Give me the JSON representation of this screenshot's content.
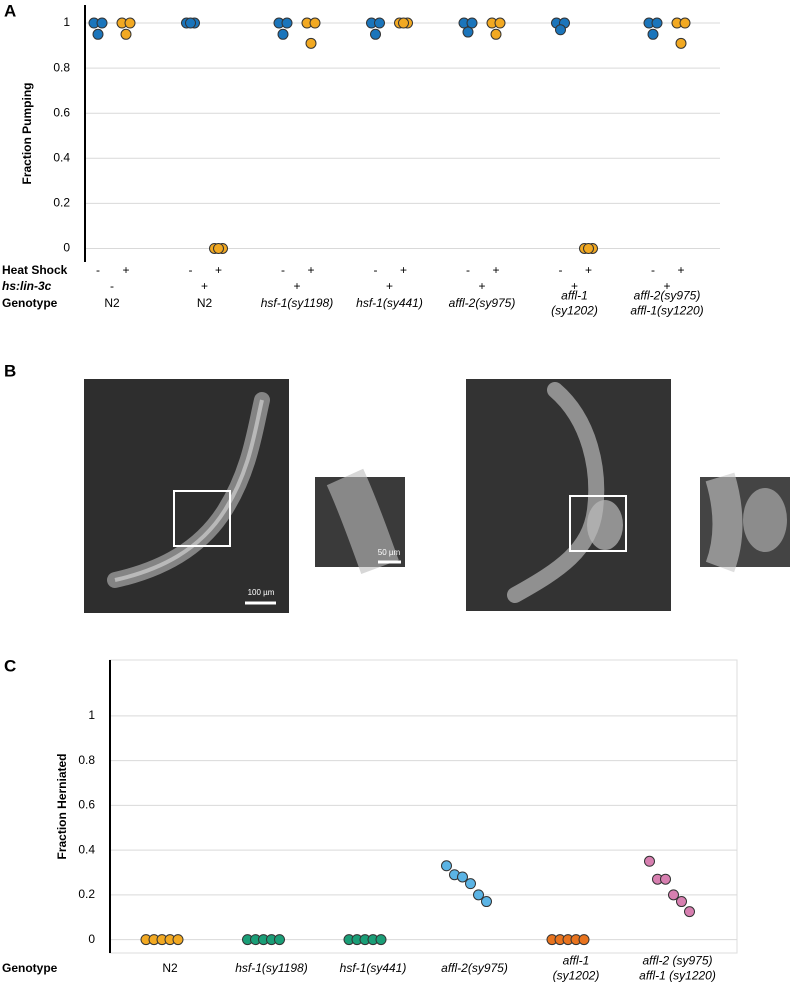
{
  "chart_data": [
    {
      "type": "strip",
      "panel": "A",
      "y_label": "Fraction Pumping",
      "ylim": [
        -0.06,
        1.08
      ],
      "yticks": [
        0,
        0.2,
        0.4,
        0.6,
        0.8,
        1
      ],
      "grid": true,
      "row_labels": [
        "Heat Shock",
        "hs:lin-3c",
        "Genotype"
      ],
      "condition_colors": [
        "#1b75bb",
        "#f2a922"
      ],
      "groups": [
        {
          "genotype": [
            "N2"
          ],
          "italic": false,
          "lin3c": "-",
          "conditions": [
            {
              "heat_shock": "-",
              "values": [
                1,
                1,
                0.95
              ]
            },
            {
              "heat_shock": "+",
              "values": [
                1,
                1,
                0.95
              ]
            }
          ]
        },
        {
          "genotype": [
            "N2"
          ],
          "italic": false,
          "lin3c": "+",
          "conditions": [
            {
              "heat_shock": "-",
              "values": [
                1,
                1,
                1
              ]
            },
            {
              "heat_shock": "+",
              "values": [
                0,
                0,
                0
              ]
            }
          ]
        },
        {
          "genotype": [
            "hsf-1(sy1198)"
          ],
          "italic": true,
          "lin3c": "+",
          "conditions": [
            {
              "heat_shock": "-",
              "values": [
                1,
                1,
                0.95
              ]
            },
            {
              "heat_shock": "+",
              "values": [
                1,
                1,
                0.91
              ]
            }
          ]
        },
        {
          "genotype": [
            "hsf-1(sy441)"
          ],
          "italic": true,
          "lin3c": "+",
          "conditions": [
            {
              "heat_shock": "-",
              "values": [
                1,
                1,
                0.95
              ]
            },
            {
              "heat_shock": "+",
              "values": [
                1,
                1,
                1
              ]
            }
          ]
        },
        {
          "genotype": [
            "affl-2(sy975)"
          ],
          "italic": true,
          "lin3c": "+",
          "conditions": [
            {
              "heat_shock": "-",
              "values": [
                1,
                1,
                0.96
              ]
            },
            {
              "heat_shock": "+",
              "values": [
                1,
                1,
                0.95
              ]
            }
          ]
        },
        {
          "genotype": [
            "affl-1",
            "(sy1202)"
          ],
          "italic": true,
          "lin3c": "+",
          "conditions": [
            {
              "heat_shock": "-",
              "values": [
                1,
                1,
                0.97
              ]
            },
            {
              "heat_shock": "+",
              "values": [
                0,
                0,
                0
              ]
            }
          ]
        },
        {
          "genotype": [
            "affl-2(sy975)",
            "affl-1(sy1220)"
          ],
          "italic": true,
          "lin3c": "+",
          "conditions": [
            {
              "heat_shock": "-",
              "values": [
                1,
                1,
                0.95
              ]
            },
            {
              "heat_shock": "+",
              "values": [
                1,
                1,
                0.91
              ]
            }
          ]
        }
      ]
    },
    {
      "type": "strip",
      "panel": "C",
      "y_label": "Fraction Herniated",
      "ylim": [
        -0.06,
        1.25
      ],
      "yticks": [
        0,
        0.2,
        0.4,
        0.6,
        0.8,
        1
      ],
      "grid": true,
      "row_labels": [
        "Genotype"
      ],
      "groups": [
        {
          "genotype": [
            "N2"
          ],
          "italic": false,
          "color": "#f2a922",
          "values": [
            0,
            0,
            0,
            0,
            0
          ]
        },
        {
          "genotype": [
            "hsf-1(sy1198)"
          ],
          "italic": true,
          "color": "#1a9e77",
          "values": [
            0,
            0,
            0,
            0,
            0
          ]
        },
        {
          "genotype": [
            "hsf-1(sy441)"
          ],
          "italic": true,
          "color": "#1a9e77",
          "values": [
            0,
            0,
            0,
            0,
            0
          ]
        },
        {
          "genotype": [
            "affl-2(sy975)"
          ],
          "italic": true,
          "color": "#5bb4e5",
          "values": [
            0.33,
            0.29,
            0.28,
            0.25,
            0.2,
            0.17
          ]
        },
        {
          "genotype": [
            "affl-1",
            "(sy1202)"
          ],
          "italic": true,
          "color": "#e8731e",
          "values": [
            0,
            0,
            0,
            0,
            0
          ]
        },
        {
          "genotype": [
            "affl-2 (sy975)",
            "affl-1 (sy1220)"
          ],
          "italic": true,
          "color": "#d77fb0",
          "values": [
            0.35,
            0.27,
            0.27,
            0.2,
            0.17,
            0.125
          ]
        }
      ]
    }
  ],
  "panel_b": {
    "label": "B",
    "scale_bars": [
      "100 µm",
      "50 µm"
    ]
  }
}
